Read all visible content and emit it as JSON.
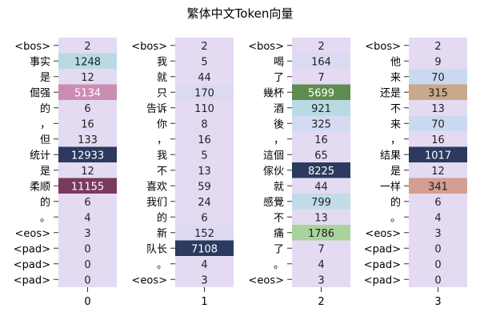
{
  "chart_data": {
    "type": "heatmap",
    "title": "繁体中文Token向量",
    "xlabel": "",
    "ylabel": "",
    "x_tick_labels": [
      "0",
      "1",
      "2",
      "3"
    ],
    "columns": [
      {
        "tokens": [
          "<bos>",
          "事实",
          "是",
          "倔强",
          "的",
          "，",
          "但",
          "统计",
          "是",
          "柔顺",
          "的",
          "。",
          "<eos>",
          "<pad>",
          "<pad>",
          "<pad>"
        ],
        "values": [
          2,
          1248,
          12,
          5134,
          6,
          16,
          133,
          12933,
          12,
          11155,
          6,
          4,
          3,
          0,
          0,
          0
        ],
        "colors": [
          "#e4daf2",
          "#b8dbe3",
          "#e4daf2",
          "#cc8db2",
          "#e4daf2",
          "#e4daf2",
          "#e4daf2",
          "#2b3a5e",
          "#e4daf2",
          "#7a3a5e",
          "#e4daf2",
          "#e4daf2",
          "#e4daf2",
          "#e4daf2",
          "#e4daf2",
          "#e4daf2"
        ]
      },
      {
        "tokens": [
          "<bos>",
          "我",
          "就",
          "只",
          "告诉",
          "你",
          "，",
          "我",
          "不",
          "喜欢",
          "我们",
          "的",
          "新",
          "队长",
          "。",
          "<eos>"
        ],
        "values": [
          2,
          5,
          44,
          170,
          110,
          8,
          16,
          5,
          13,
          59,
          24,
          6,
          152,
          7108,
          4,
          3
        ],
        "colors": [
          "#e4daf2",
          "#e4daf2",
          "#e4daf2",
          "#dcdaf3",
          "#e4daf2",
          "#e4daf2",
          "#e4daf2",
          "#e4daf2",
          "#e4daf2",
          "#e4daf2",
          "#e4daf2",
          "#e4daf2",
          "#dcdaf3",
          "#2b3a5e",
          "#e4daf2",
          "#e4daf2"
        ]
      },
      {
        "tokens": [
          "<bos>",
          "喝",
          "了",
          "幾杯",
          "酒",
          "後",
          "，",
          "這個",
          "傢伙",
          "就",
          "感覺",
          "不",
          "痛",
          "了",
          "。",
          "<eos>"
        ],
        "values": [
          2,
          164,
          7,
          5699,
          921,
          325,
          16,
          65,
          8225,
          44,
          799,
          13,
          1786,
          7,
          4,
          3
        ],
        "colors": [
          "#e4daf2",
          "#dcdaf3",
          "#e4daf2",
          "#5e8c50",
          "#b8dbe3",
          "#d4daf3",
          "#e4daf2",
          "#e4daf2",
          "#2b3a5e",
          "#e4daf2",
          "#c2dbe8",
          "#e4daf2",
          "#a9d39d",
          "#e4daf2",
          "#e4daf2",
          "#e4daf2"
        ]
      },
      {
        "tokens": [
          "<bos>",
          "他",
          "来",
          "还是",
          "不",
          "来",
          "，",
          "结果",
          "是",
          "一样",
          "的",
          "。",
          "<eos>",
          "<pad>",
          "<pad>",
          "<pad>"
        ],
        "values": [
          2,
          9,
          70,
          315,
          13,
          70,
          16,
          1017,
          12,
          341,
          6,
          4,
          3,
          0,
          0,
          0
        ],
        "colors": [
          "#e4daf2",
          "#e4daf2",
          "#cad9f2",
          "#c9a98a",
          "#e4daf2",
          "#cad9f2",
          "#e4daf2",
          "#2b3a5e",
          "#e4daf2",
          "#d49e90",
          "#e4daf2",
          "#e4daf2",
          "#e4daf2",
          "#e4daf2",
          "#e4daf2",
          "#e4daf2"
        ]
      }
    ]
  }
}
